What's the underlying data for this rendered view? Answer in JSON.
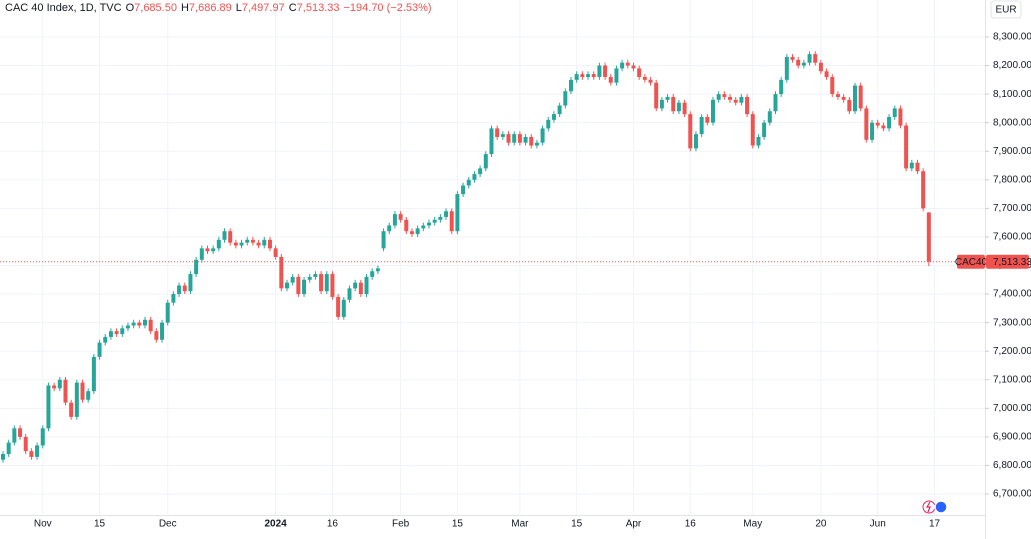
{
  "chart_data": {
    "type": "candlestick",
    "title": "CAC 40 Index, 1D, TVC",
    "header_fields": [
      {
        "key": "O",
        "text": "7,685.50"
      },
      {
        "key": "H",
        "text": "7,686.89"
      },
      {
        "key": "L",
        "text": "7,497.97"
      },
      {
        "key": "C",
        "text": "7,513.33"
      },
      {
        "key": "",
        "text": "−194.70 (−2.53%)"
      }
    ],
    "currency": "EUR",
    "categories": [
      null,
      null,
      null,
      null,
      null,
      null,
      null,
      "Nov",
      null,
      null,
      null,
      null,
      null,
      null,
      null,
      null,
      null,
      "15",
      null,
      null,
      null,
      null,
      null,
      null,
      null,
      null,
      null,
      null,
      null,
      "Dec",
      null,
      null,
      null,
      null,
      null,
      null,
      null,
      null,
      null,
      null,
      null,
      null,
      null,
      null,
      null,
      null,
      null,
      null,
      "2024",
      null,
      null,
      null,
      null,
      null,
      null,
      null,
      null,
      null,
      "16",
      null,
      null,
      null,
      null,
      null,
      null,
      null,
      null,
      null,
      null,
      null,
      "Feb",
      null,
      null,
      null,
      null,
      null,
      null,
      null,
      null,
      null,
      "15",
      null,
      null,
      null,
      null,
      null,
      null,
      null,
      null,
      null,
      null,
      "Mar",
      null,
      null,
      null,
      null,
      null,
      null,
      null,
      null,
      null,
      "15",
      null,
      null,
      null,
      null,
      null,
      null,
      null,
      null,
      null,
      "Apr",
      null,
      null,
      null,
      null,
      null,
      null,
      null,
      null,
      null,
      "16",
      null,
      null,
      null,
      null,
      null,
      null,
      null,
      null,
      null,
      null,
      "May",
      null,
      null,
      null,
      null,
      null,
      null,
      null,
      null,
      null,
      null,
      null,
      "20",
      null,
      null,
      null,
      null,
      null,
      null,
      null,
      null,
      null,
      "Jun",
      null,
      null,
      null,
      null,
      null,
      null,
      null,
      null,
      null,
      "17"
    ],
    "bold_categories": [
      "2024"
    ],
    "series": [
      {
        "name": "CAC40",
        "up_color": "#26a69a",
        "down_color": "#ef5350",
        "open": [
          6820,
          6840,
          6880,
          6930,
          6900,
          6850,
          6830,
          6870,
          6930,
          7080,
          7070,
          7100,
          7020,
          6970,
          7090,
          7030,
          7060,
          7180,
          7230,
          7250,
          7270,
          7260,
          7280,
          7290,
          7300,
          7290,
          7310,
          7270,
          7240,
          7300,
          7370,
          7400,
          7430,
          7410,
          7470,
          7520,
          7560,
          7550,
          7560,
          7590,
          7620,
          7580,
          7570,
          7580,
          7590,
          7580,
          7570,
          7590,
          7560,
          7530,
          7420,
          7440,
          7460,
          7400,
          7450,
          7460,
          7470,
          7410,
          7470,
          7390,
          7320,
          7380,
          7420,
          7440,
          7400,
          7460,
          7480,
          7560,
          7620,
          7640,
          7680,
          7660,
          7620,
          7610,
          7630,
          7640,
          7650,
          7660,
          7670,
          7690,
          7620,
          7750,
          7780,
          7800,
          7820,
          7840,
          7890,
          7980,
          7950,
          7960,
          7930,
          7960,
          7930,
          7950,
          7920,
          7930,
          7980,
          8010,
          8030,
          8060,
          8110,
          8150,
          8170,
          8160,
          8170,
          8160,
          8200,
          8160,
          8140,
          8190,
          8210,
          8200,
          8190,
          8160,
          8150,
          8140,
          8050,
          8080,
          8090,
          8040,
          8070,
          8030,
          7910,
          7960,
          8020,
          8000,
          8080,
          8100,
          8090,
          8080,
          8070,
          8090,
          8030,
          7920,
          7950,
          8000,
          8040,
          8100,
          8150,
          8230,
          8220,
          8200,
          8210,
          8240,
          8210,
          8180,
          8160,
          8100,
          8090,
          8080,
          8040,
          8130,
          8050,
          7940,
          8000,
          7990,
          7980,
          8020,
          8050,
          7990,
          7840,
          7860,
          7830,
          7685.5,
          null
        ],
        "high": [
          6850,
          6890,
          6940,
          6940,
          6910,
          6860,
          6880,
          6940,
          7090,
          7090,
          7110,
          7110,
          7030,
          7100,
          7100,
          7070,
          7190,
          7240,
          7260,
          7280,
          7280,
          7290,
          7300,
          7310,
          7310,
          7320,
          7320,
          7280,
          7310,
          7380,
          7410,
          7440,
          7440,
          7480,
          7530,
          7570,
          7570,
          7570,
          7600,
          7630,
          7630,
          7590,
          7590,
          7600,
          7600,
          7590,
          7600,
          7600,
          7570,
          7540,
          7450,
          7470,
          7470,
          7460,
          7470,
          7480,
          7480,
          7480,
          7480,
          7400,
          7390,
          7430,
          7450,
          7450,
          7470,
          7490,
          7500,
          7630,
          7650,
          7690,
          7690,
          7670,
          7630,
          7640,
          7650,
          7660,
          7670,
          7680,
          7700,
          7700,
          7760,
          7790,
          7810,
          7830,
          7850,
          7900,
          7990,
          7990,
          7970,
          7970,
          7970,
          7970,
          7960,
          7960,
          7940,
          7990,
          8020,
          8040,
          8070,
          8120,
          8160,
          8180,
          8180,
          8180,
          8180,
          8210,
          8210,
          8170,
          8200,
          8220,
          8220,
          8210,
          8200,
          8170,
          8160,
          8150,
          8090,
          8100,
          8100,
          8080,
          8080,
          8040,
          7970,
          8030,
          8030,
          8090,
          8110,
          8110,
          8100,
          8090,
          8100,
          8100,
          8040,
          7960,
          8010,
          8050,
          8110,
          8160,
          8240,
          8240,
          8230,
          8220,
          8250,
          8250,
          8220,
          8190,
          8170,
          8110,
          8100,
          8090,
          8140,
          8140,
          8060,
          8010,
          8010,
          8000,
          8030,
          8060,
          8060,
          8000,
          7870,
          7870,
          7840,
          7686.89,
          null
        ],
        "low": [
          6810,
          6830,
          6870,
          6890,
          6840,
          6820,
          6820,
          6860,
          6920,
          7060,
          7060,
          7010,
          6960,
          6960,
          7020,
          7020,
          7050,
          7170,
          7220,
          7240,
          7250,
          7250,
          7270,
          7280,
          7280,
          7280,
          7260,
          7230,
          7230,
          7290,
          7360,
          7390,
          7400,
          7400,
          7460,
          7510,
          7540,
          7540,
          7550,
          7580,
          7570,
          7560,
          7560,
          7570,
          7570,
          7560,
          7560,
          7550,
          7520,
          7410,
          7410,
          7430,
          7390,
          7390,
          7440,
          7450,
          7400,
          7400,
          7380,
          7310,
          7310,
          7370,
          7410,
          7390,
          7390,
          7450,
          7470,
          7550,
          7610,
          7630,
          7650,
          7610,
          7600,
          7600,
          7620,
          7630,
          7640,
          7650,
          7660,
          7610,
          7610,
          7740,
          7770,
          7790,
          7810,
          7830,
          7880,
          7940,
          7940,
          7920,
          7920,
          7920,
          7920,
          7910,
          7910,
          7920,
          7970,
          8000,
          8020,
          8050,
          8100,
          8140,
          8150,
          8150,
          8150,
          8150,
          8150,
          8130,
          8130,
          8180,
          8190,
          8180,
          8150,
          8140,
          8130,
          8040,
          8040,
          8070,
          8030,
          8030,
          8020,
          7900,
          7900,
          7950,
          7990,
          7990,
          8070,
          8080,
          8070,
          8060,
          8060,
          8020,
          7910,
          7910,
          7940,
          7990,
          8030,
          8090,
          8140,
          8210,
          8190,
          8190,
          8200,
          8200,
          8170,
          8150,
          8090,
          8080,
          8070,
          8030,
          8030,
          8040,
          7930,
          7930,
          7980,
          7970,
          7970,
          8010,
          7980,
          7830,
          7830,
          7820,
          7690,
          7497.97,
          null
        ],
        "close": [
          6840,
          6880,
          6930,
          6900,
          6850,
          6830,
          6870,
          6930,
          7080,
          7070,
          7100,
          7020,
          6970,
          7090,
          7030,
          7060,
          7180,
          7230,
          7250,
          7270,
          7260,
          7280,
          7290,
          7300,
          7290,
          7310,
          7270,
          7240,
          7300,
          7370,
          7400,
          7430,
          7410,
          7470,
          7520,
          7560,
          7550,
          7560,
          7590,
          7620,
          7580,
          7570,
          7580,
          7590,
          7580,
          7570,
          7590,
          7560,
          7530,
          7420,
          7440,
          7460,
          7400,
          7450,
          7460,
          7470,
          7410,
          7470,
          7390,
          7320,
          7380,
          7420,
          7440,
          7400,
          7460,
          7480,
          7490,
          7620,
          7640,
          7680,
          7660,
          7620,
          7610,
          7630,
          7640,
          7650,
          7660,
          7670,
          7690,
          7620,
          7750,
          7780,
          7800,
          7820,
          7840,
          7890,
          7980,
          7950,
          7960,
          7930,
          7960,
          7930,
          7950,
          7920,
          7930,
          7980,
          8010,
          8030,
          8060,
          8110,
          8150,
          8170,
          8160,
          8170,
          8160,
          8200,
          8160,
          8140,
          8190,
          8210,
          8200,
          8190,
          8160,
          8150,
          8140,
          8050,
          8080,
          8090,
          8040,
          8070,
          8030,
          7910,
          7960,
          8020,
          8000,
          8080,
          8100,
          8090,
          8080,
          8070,
          8090,
          8030,
          7920,
          7950,
          8000,
          8040,
          8100,
          8150,
          8230,
          8220,
          8200,
          8210,
          8240,
          8210,
          8180,
          8160,
          8100,
          8090,
          8080,
          8040,
          8130,
          8050,
          7940,
          8000,
          7990,
          7980,
          8020,
          8050,
          7990,
          7840,
          7860,
          7830,
          7700,
          7513.33,
          null
        ]
      }
    ],
    "last_price": {
      "value": 7513.33,
      "label": "7,513.33"
    },
    "ylim": [
      6626.5,
      8429.5
    ],
    "yticks": [
      {
        "value": 6700,
        "label": "6,700.00"
      },
      {
        "value": 6800,
        "label": "6,800.00"
      },
      {
        "value": 6900,
        "label": "6,900.00"
      },
      {
        "value": 7000,
        "label": "7,000.00"
      },
      {
        "value": 7100,
        "label": "7,100.00"
      },
      {
        "value": 7200,
        "label": "7,200.00"
      },
      {
        "value": 7300,
        "label": "7,300.00"
      },
      {
        "value": 7400,
        "label": "7,400.00"
      },
      {
        "value": 7500,
        "label": "7,500.00"
      },
      {
        "value": 7600,
        "label": "7,600.00"
      },
      {
        "value": 7700,
        "label": "7,700.00"
      },
      {
        "value": 7800,
        "label": "7,800.00"
      },
      {
        "value": 7900,
        "label": "7,900.00"
      },
      {
        "value": 8000,
        "label": "8,000.00"
      },
      {
        "value": 8100,
        "label": "8,100.00"
      },
      {
        "value": 8200,
        "label": "8,200.00"
      },
      {
        "value": 8300,
        "label": "8,300.00"
      }
    ],
    "grid": true
  }
}
